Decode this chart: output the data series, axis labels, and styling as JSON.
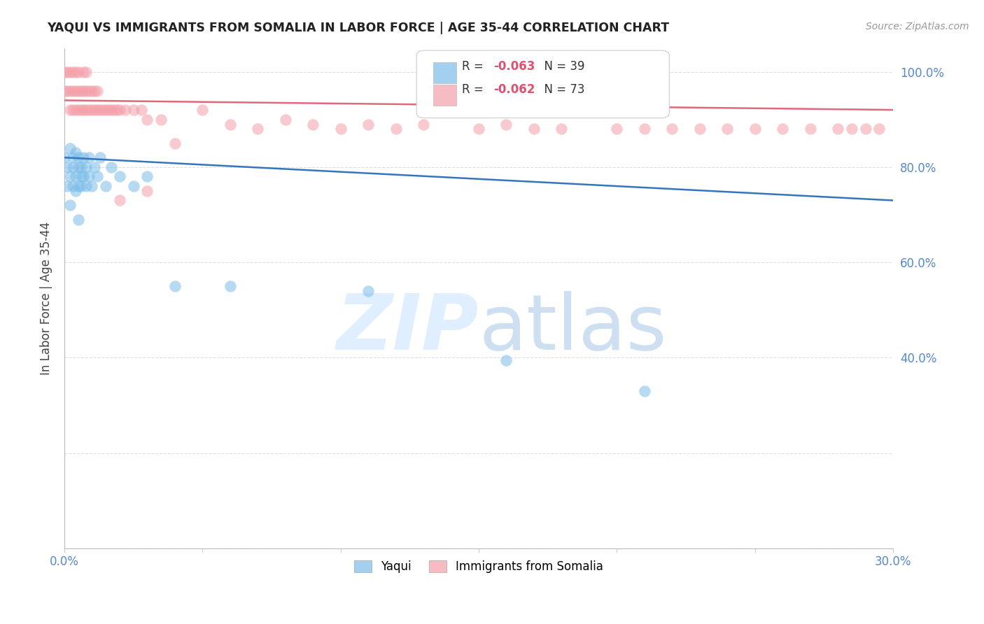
{
  "title": "YAQUI VS IMMIGRANTS FROM SOMALIA IN LABOR FORCE | AGE 35-44 CORRELATION CHART",
  "source": "Source: ZipAtlas.com",
  "ylabel": "In Labor Force | Age 35-44",
  "xlim": [
    0.0,
    0.3
  ],
  "ylim": [
    0.0,
    1.05
  ],
  "yaqui_R": -0.063,
  "yaqui_N": 39,
  "somalia_R": -0.062,
  "somalia_N": 73,
  "yaqui_color": "#7bbde8",
  "somalia_color": "#f4a0aa",
  "yaqui_line_color": "#3575c0",
  "somalia_line_color": "#e06878",
  "yaqui_x": [
    0.0,
    0.001,
    0.001,
    0.002,
    0.002,
    0.002,
    0.003,
    0.003,
    0.003,
    0.004,
    0.004,
    0.004,
    0.005,
    0.005,
    0.005,
    0.006,
    0.006,
    0.006,
    0.007,
    0.007,
    0.008,
    0.008,
    0.009,
    0.009,
    0.01,
    0.011,
    0.012,
    0.013,
    0.015,
    0.017,
    0.02,
    0.025,
    0.03,
    0.04,
    0.06,
    0.11,
    0.16,
    0.21,
    0.005
  ],
  "yaqui_y": [
    0.82,
    0.76,
    0.8,
    0.78,
    0.72,
    0.84,
    0.76,
    0.8,
    0.82,
    0.78,
    0.75,
    0.83,
    0.76,
    0.8,
    0.82,
    0.78,
    0.76,
    0.8,
    0.82,
    0.78,
    0.76,
    0.8,
    0.78,
    0.82,
    0.76,
    0.8,
    0.78,
    0.82,
    0.76,
    0.8,
    0.78,
    0.76,
    0.78,
    0.55,
    0.55,
    0.54,
    0.395,
    0.33,
    0.69
  ],
  "somalia_x": [
    0.0,
    0.0,
    0.001,
    0.001,
    0.002,
    0.002,
    0.002,
    0.003,
    0.003,
    0.003,
    0.004,
    0.004,
    0.004,
    0.005,
    0.005,
    0.005,
    0.006,
    0.006,
    0.007,
    0.007,
    0.007,
    0.008,
    0.008,
    0.008,
    0.009,
    0.009,
    0.01,
    0.01,
    0.011,
    0.011,
    0.012,
    0.012,
    0.013,
    0.014,
    0.015,
    0.016,
    0.017,
    0.018,
    0.019,
    0.02,
    0.022,
    0.025,
    0.028,
    0.03,
    0.035,
    0.04,
    0.05,
    0.06,
    0.07,
    0.08,
    0.09,
    0.1,
    0.11,
    0.12,
    0.13,
    0.15,
    0.16,
    0.17,
    0.18,
    0.2,
    0.21,
    0.22,
    0.23,
    0.24,
    0.25,
    0.26,
    0.27,
    0.28,
    0.285,
    0.29,
    0.295,
    0.02,
    0.03
  ],
  "somalia_y": [
    0.96,
    1.0,
    0.96,
    1.0,
    0.96,
    0.92,
    1.0,
    0.92,
    0.96,
    1.0,
    0.92,
    0.96,
    1.0,
    0.92,
    0.96,
    1.0,
    0.92,
    0.96,
    0.92,
    0.96,
    1.0,
    0.92,
    0.96,
    1.0,
    0.92,
    0.96,
    0.92,
    0.96,
    0.92,
    0.96,
    0.92,
    0.96,
    0.92,
    0.92,
    0.92,
    0.92,
    0.92,
    0.92,
    0.92,
    0.92,
    0.92,
    0.92,
    0.92,
    0.9,
    0.9,
    0.85,
    0.92,
    0.89,
    0.88,
    0.9,
    0.89,
    0.88,
    0.89,
    0.88,
    0.89,
    0.88,
    0.89,
    0.88,
    0.88,
    0.88,
    0.88,
    0.88,
    0.88,
    0.88,
    0.88,
    0.88,
    0.88,
    0.88,
    0.88,
    0.88,
    0.88,
    0.73,
    0.75
  ]
}
